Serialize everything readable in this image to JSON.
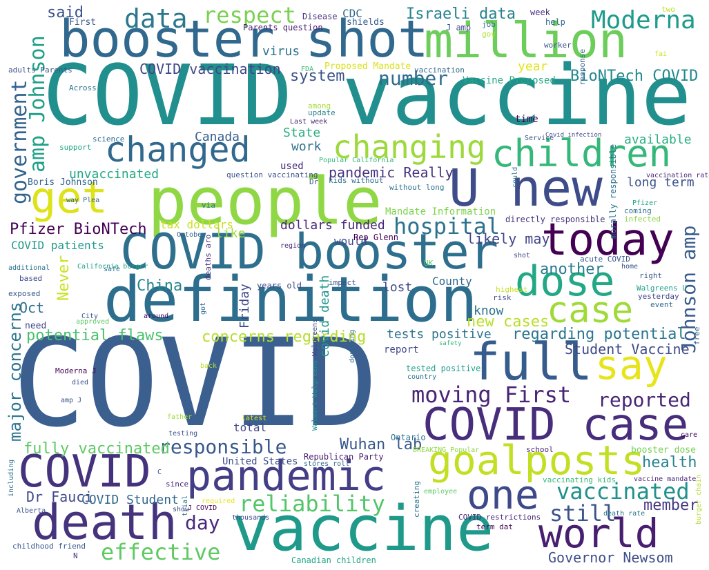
{
  "words": [
    {
      "text": "COVID",
      "color": "#3b5f8f"
    },
    {
      "text": "COVID vaccine",
      "color": "#218f8d"
    },
    {
      "text": "vaccine",
      "color": "#1f9a8a"
    },
    {
      "text": "people",
      "color": "#8fd744"
    },
    {
      "text": "definition",
      "color": "#2d6e8e"
    },
    {
      "text": "booster shot",
      "color": "#30688e"
    },
    {
      "text": "million",
      "color": "#6ccd5a"
    },
    {
      "text": "COVID booster",
      "color": "#2e6f8e"
    },
    {
      "text": "U new",
      "color": "#3f4c8a"
    },
    {
      "text": "COVID case",
      "color": "#472d7b"
    },
    {
      "text": "pandemic",
      "color": "#433e85"
    },
    {
      "text": "full",
      "color": "#365c8d"
    },
    {
      "text": "world",
      "color": "#481f70"
    },
    {
      "text": "death",
      "color": "#46337e"
    },
    {
      "text": "COVID",
      "color": "#45327d"
    },
    {
      "text": "today",
      "color": "#440154"
    },
    {
      "text": "dose",
      "color": "#22a884"
    },
    {
      "text": "case",
      "color": "#a0da39"
    },
    {
      "text": "say",
      "color": "#e7e419"
    },
    {
      "text": "goalposts",
      "color": "#c2df23"
    },
    {
      "text": "changed",
      "color": "#31688e"
    },
    {
      "text": "children",
      "color": "#35b779"
    },
    {
      "text": "get",
      "color": "#dde318"
    },
    {
      "text": "changing",
      "color": "#9dd93b"
    },
    {
      "text": "one",
      "color": "#3e4989"
    },
    {
      "text": "data",
      "color": "#2a788e"
    },
    {
      "text": "respect",
      "color": "#7ad151"
    },
    {
      "text": "Moderna",
      "color": "#1e9b8a"
    },
    {
      "text": "hospital",
      "color": "#2c728e"
    },
    {
      "text": "reliability",
      "color": "#52c569"
    },
    {
      "text": "vaccinated",
      "color": "#21918c"
    },
    {
      "text": "still",
      "color": "#3b528b"
    },
    {
      "text": "effective",
      "color": "#5ec962"
    },
    {
      "text": "moving First",
      "color": "#482475"
    },
    {
      "text": "responsible",
      "color": "#38588c"
    },
    {
      "text": "reported",
      "color": "#482677"
    },
    {
      "text": "day",
      "color": "#482979"
    },
    {
      "text": "government",
      "color": "#33638d"
    },
    {
      "text": "amp Johnson",
      "color": "#1fa088"
    },
    {
      "text": "Johnson amp",
      "color": "#375b8d"
    },
    {
      "text": "number",
      "color": "#2f6c8e"
    },
    {
      "text": "another",
      "color": "#287c8e"
    },
    {
      "text": "potential flaws",
      "color": "#4ac16d"
    },
    {
      "text": "concerns regarding",
      "color": "#b5de2b"
    },
    {
      "text": "regarding potential",
      "color": "#2a768e"
    },
    {
      "text": "Israeli data",
      "color": "#26828e"
    },
    {
      "text": "BioNTech COVID",
      "color": "#23898e"
    },
    {
      "text": "Pfizer BioNTech",
      "color": "#440154"
    },
    {
      "text": "COVID vaccination",
      "color": "#404688"
    },
    {
      "text": "major concerns",
      "color": "#2b758e"
    },
    {
      "text": "fully vaccinated",
      "color": "#5ec962"
    },
    {
      "text": "Student Vaccine",
      "color": "#3e4a89"
    },
    {
      "text": "new cases",
      "color": "#b8de29"
    },
    {
      "text": "Wuhan lab",
      "color": "#38588c"
    },
    {
      "text": "health",
      "color": "#25838e"
    },
    {
      "text": "China",
      "color": "#24868e"
    },
    {
      "text": "system",
      "color": "#3b528b"
    },
    {
      "text": "member",
      "color": "#453781"
    },
    {
      "text": "Governor Newsom",
      "color": "#3d4e8a"
    },
    {
      "text": "Dr Fauci",
      "color": "#3f4788"
    },
    {
      "text": "COVID Student",
      "color": "#31688e"
    },
    {
      "text": "tests positive",
      "color": "#2c728e"
    },
    {
      "text": "likely may",
      "color": "#414487"
    },
    {
      "text": "pandemic Really",
      "color": "#46327e"
    },
    {
      "text": "dollars funded",
      "color": "#482878"
    },
    {
      "text": "Canada",
      "color": "#355f8d"
    },
    {
      "text": "covid death",
      "color": "#1f978b"
    },
    {
      "text": "Never",
      "color": "#cae11f"
    },
    {
      "text": "Friday",
      "color": "#3e4989"
    },
    {
      "text": "lost",
      "color": "#3e4c8a"
    },
    {
      "text": "said",
      "color": "#3b528b"
    },
    {
      "text": "work",
      "color": "#2d708e"
    },
    {
      "text": "State",
      "color": "#29af7f"
    },
    {
      "text": "available",
      "color": "#29af7f"
    },
    {
      "text": "long term",
      "color": "#3b528b"
    },
    {
      "text": "virus",
      "color": "#2c728e"
    },
    {
      "text": "year",
      "color": "#e5e419"
    },
    {
      "text": "know",
      "color": "#2c738e"
    },
    {
      "text": "County",
      "color": "#31688e"
    },
    {
      "text": "Oct",
      "color": "#2e6e8e"
    },
    {
      "text": "tax dollars",
      "color": "#c8e020"
    },
    {
      "text": "like",
      "color": "#9fda3a"
    },
    {
      "text": "would",
      "color": "#3e4a89"
    },
    {
      "text": "Vaccine Proposed",
      "color": "#22a785"
    },
    {
      "text": "Proposed Mandate",
      "color": "#d8e219"
    },
    {
      "text": "Mandate Information",
      "color": "#7fd34e"
    },
    {
      "text": "unvaccinated",
      "color": "#22a884"
    },
    {
      "text": "COVID patients",
      "color": "#1f998a"
    },
    {
      "text": "CDC",
      "color": "#30698e"
    },
    {
      "text": "used",
      "color": "#472a7a"
    },
    {
      "text": "report",
      "color": "#3f4889"
    },
    {
      "text": "tested positive",
      "color": "#1fa188"
    },
    {
      "text": "United States",
      "color": "#3d4d8a"
    },
    {
      "text": "Republican Party",
      "color": "#482071"
    },
    {
      "text": "booster dose",
      "color": "#75d054"
    },
    {
      "text": "total",
      "color": "#404688"
    },
    {
      "text": "Ontario",
      "color": "#2c738e"
    },
    {
      "text": "need",
      "color": "#3e4a89"
    },
    {
      "text": "time",
      "color": "#440154"
    },
    {
      "text": "another",
      "color": "#31688e"
    },
    {
      "text": "Boris Johnson",
      "color": "#31678e"
    },
    {
      "text": "First",
      "color": "#39568c"
    },
    {
      "text": "shields",
      "color": "#355e8d"
    },
    {
      "text": "Parents question",
      "color": "#481f70"
    },
    {
      "text": "Disease",
      "color": "#46327e"
    },
    {
      "text": "week",
      "color": "#46307e"
    },
    {
      "text": "two",
      "color": "#bddf26"
    },
    {
      "text": "J amp",
      "color": "#404688"
    },
    {
      "text": "help",
      "color": "#31688e"
    },
    {
      "text": "job",
      "color": "#2d708e"
    },
    {
      "text": "gov",
      "color": "#b2dd2d"
    },
    {
      "text": "worker",
      "color": "#3b528b"
    },
    {
      "text": "fai",
      "color": "#d2e21b"
    },
    {
      "text": "adults Parents",
      "color": "#39558c"
    },
    {
      "text": "FDA",
      "color": "#3dbc74"
    },
    {
      "text": "vaccination",
      "color": "#31688e"
    },
    {
      "text": "Across",
      "color": "#2d708e"
    },
    {
      "text": "among",
      "color": "#a5db36"
    },
    {
      "text": "update",
      "color": "#26828e"
    },
    {
      "text": "Last week",
      "color": "#482576"
    },
    {
      "text": "response",
      "color": "#33638d"
    },
    {
      "text": "science",
      "color": "#2e6d8e"
    },
    {
      "text": "support",
      "color": "#20a386"
    },
    {
      "text": "Service",
      "color": "#39568c"
    },
    {
      "text": "Covid infection",
      "color": "#3f4889"
    },
    {
      "text": "Popular California",
      "color": "#35b779"
    },
    {
      "text": "Dr",
      "color": "#3a548c"
    },
    {
      "text": "question vaccinating",
      "color": "#3b528b"
    },
    {
      "text": "kids without",
      "color": "#2e6d8e"
    },
    {
      "text": "without long",
      "color": "#2c728e"
    },
    {
      "text": "vaccination rate",
      "color": "#482878"
    },
    {
      "text": "coming",
      "color": "#2d708e"
    },
    {
      "text": "Pfizer",
      "color": "#20a386"
    },
    {
      "text": "infected",
      "color": "#8ed645"
    },
    {
      "text": "way Plea",
      "color": "#31688e"
    },
    {
      "text": "via",
      "color": "#2c728e"
    },
    {
      "text": "directly responsible",
      "color": "#46327e"
    },
    {
      "text": "could",
      "color": "#2d708e"
    },
    {
      "text": "October",
      "color": "#33638d"
    },
    {
      "text": "Rep Glenn",
      "color": "#440154"
    },
    {
      "text": "region",
      "color": "#482878"
    },
    {
      "text": "morally responsible",
      "color": "#2c728e"
    },
    {
      "text": "acute COVID",
      "color": "#38588c"
    },
    {
      "text": "home",
      "color": "#3b528b"
    },
    {
      "text": "right",
      "color": "#39568c"
    },
    {
      "text": "shot",
      "color": "#3f4889"
    },
    {
      "text": "UK",
      "color": "#5ec962"
    },
    {
      "text": "highest",
      "color": "#c2df23"
    },
    {
      "text": "risk",
      "color": "#3e4a89"
    },
    {
      "text": "Walgreens U",
      "color": "#1fa088"
    },
    {
      "text": "yesterday",
      "color": "#404688"
    },
    {
      "text": "event",
      "color": "#31688e"
    },
    {
      "text": "additional",
      "color": "#2c728e"
    },
    {
      "text": "California burger",
      "color": "#20a386"
    },
    {
      "text": "safe",
      "color": "#2c728e"
    },
    {
      "text": "years old",
      "color": "#3e4a89"
    },
    {
      "text": "deaths aro",
      "color": "#46327e"
    },
    {
      "text": "impact",
      "color": "#3b528b"
    },
    {
      "text": "based",
      "color": "#3e4989"
    },
    {
      "text": "exposed",
      "color": "#38588c"
    },
    {
      "text": "City",
      "color": "#39568c"
    },
    {
      "text": "approved",
      "color": "#5ec962"
    },
    {
      "text": "around",
      "color": "#440154"
    },
    {
      "text": "got",
      "color": "#31688e"
    },
    {
      "text": "safety",
      "color": "#35b779"
    },
    {
      "text": "free",
      "color": "#33638d"
    },
    {
      "text": "back",
      "color": "#b8de29"
    },
    {
      "text": "Walgreens",
      "color": "#3f4889"
    },
    {
      "text": "Moderna J",
      "color": "#440154"
    },
    {
      "text": "died",
      "color": "#3b528b"
    },
    {
      "text": "donating",
      "color": "#31688e"
    },
    {
      "text": "country",
      "color": "#2d708e"
    },
    {
      "text": "amp J",
      "color": "#3b528b"
    },
    {
      "text": "father",
      "color": "#a0da39"
    },
    {
      "text": "latest",
      "color": "#e5e419"
    },
    {
      "text": "testing",
      "color": "#3b528b"
    },
    {
      "text": "care",
      "color": "#440154"
    },
    {
      "text": "Walmart Walgreens",
      "color": "#21918c"
    },
    {
      "text": "BREAKING Popular",
      "color": "#8fd744"
    },
    {
      "text": "school",
      "color": "#482576"
    },
    {
      "text": "stores roll",
      "color": "#31688e"
    },
    {
      "text": "including",
      "color": "#2d708e"
    },
    {
      "text": "C",
      "color": "#3b528b"
    },
    {
      "text": "since",
      "color": "#482878"
    },
    {
      "text": "creating",
      "color": "#2c728e"
    },
    {
      "text": "employee",
      "color": "#5ec962"
    },
    {
      "text": "vaccinating kids",
      "color": "#35b779"
    },
    {
      "text": "vaccine mandate",
      "color": "#482878"
    },
    {
      "text": "Alberta",
      "color": "#3b528b"
    },
    {
      "text": "trial",
      "color": "#2c728e"
    },
    {
      "text": "show",
      "color": "#3e4a89"
    },
    {
      "text": "J COVID",
      "color": "#440154"
    },
    {
      "text": "required",
      "color": "#e5e419"
    },
    {
      "text": "thousands",
      "color": "#3e4989"
    },
    {
      "text": "COVID restrictions",
      "color": "#482878"
    },
    {
      "text": "death rate",
      "color": "#2c728e"
    },
    {
      "text": "burger chain",
      "color": "#b2dd2d"
    },
    {
      "text": "childhood friend",
      "color": "#38588c"
    },
    {
      "text": "N",
      "color": "#46327e"
    },
    {
      "text": "term dat",
      "color": "#440154"
    },
    {
      "text": "Canadian children",
      "color": "#20a386"
    }
  ]
}
